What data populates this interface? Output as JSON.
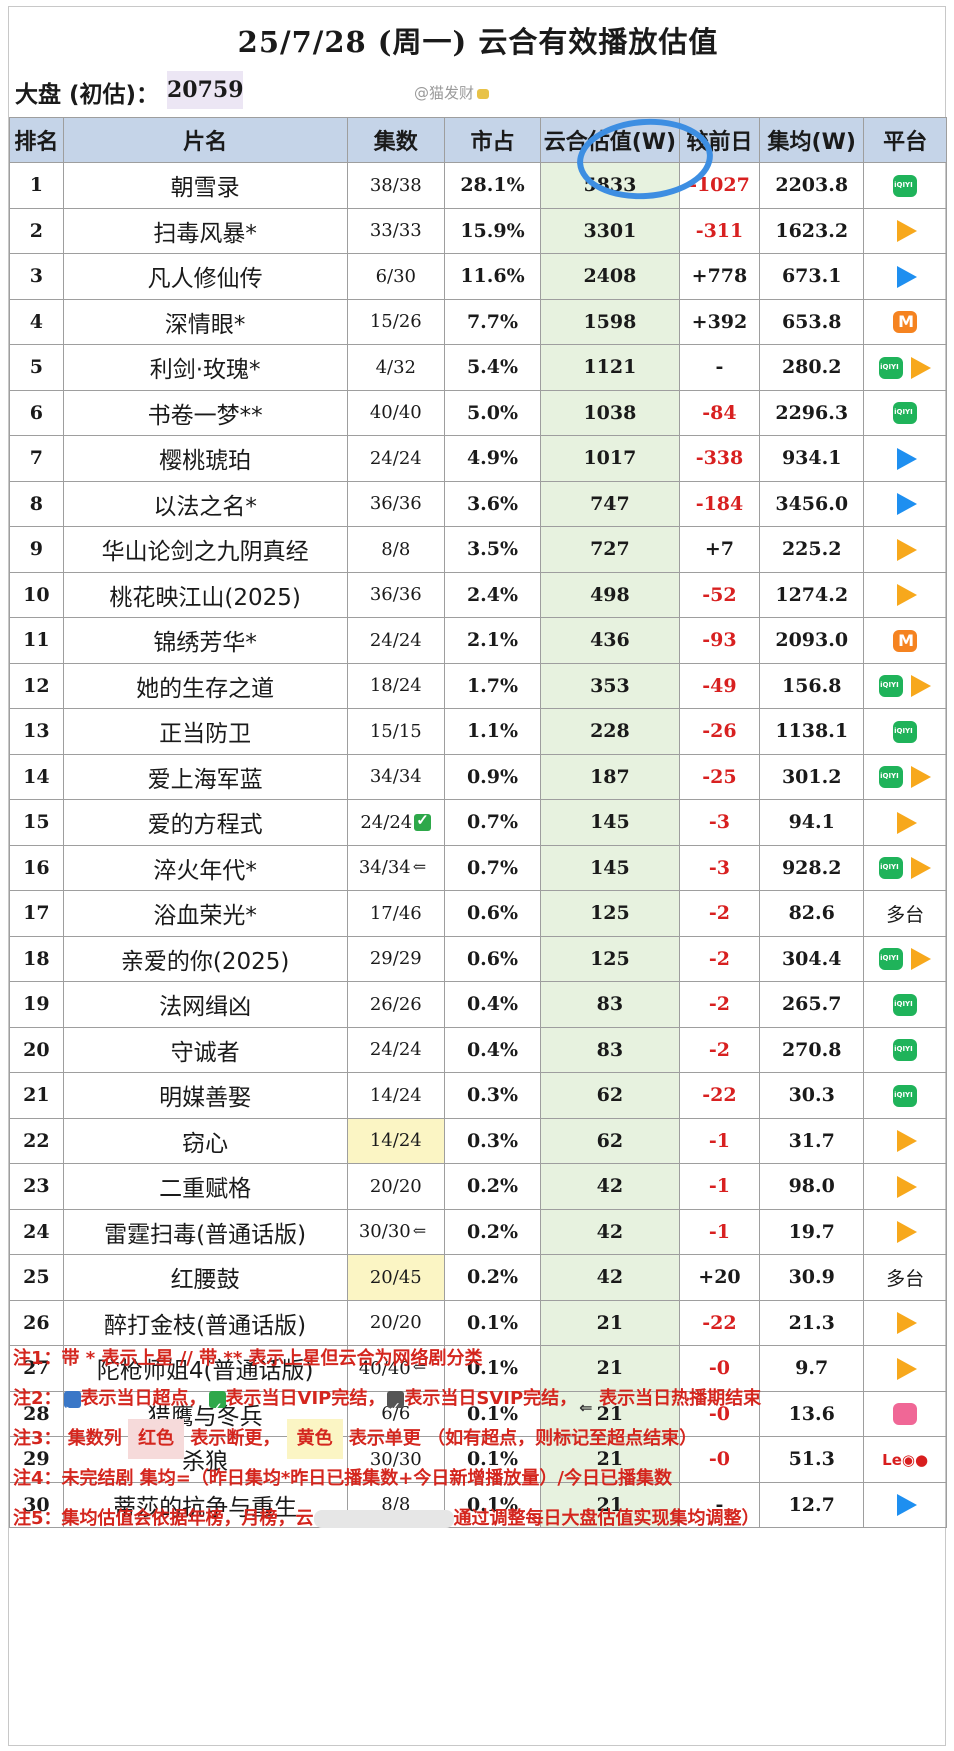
{
  "title": "25/7/28 (周一) 云合有效播放估值",
  "dapan": {
    "label": "大盘 (初估)：",
    "value": "20759"
  },
  "watermark": "@猫发财",
  "headers": [
    "排名",
    "片名",
    "集数",
    "市占",
    "云合估值(W)",
    "较前日",
    "集均(W)",
    "平台"
  ],
  "rows": [
    {
      "rank": "1",
      "name": "朝雪录",
      "eps": "38/38",
      "share": "28.1%",
      "yun": "5833",
      "prev": "-1027",
      "avg": "2203.8",
      "plat": [
        "iq"
      ]
    },
    {
      "rank": "2",
      "name": "扫毒风暴*",
      "eps": "33/33",
      "share": "15.9%",
      "yun": "3301",
      "prev": "-311",
      "avg": "1623.2",
      "plat": [
        "tx"
      ]
    },
    {
      "rank": "3",
      "name": "凡人修仙传",
      "eps": "6/30",
      "share": "11.6%",
      "yun": "2408",
      "prev": "+778",
      "avg": "673.1",
      "plat": [
        "yk"
      ]
    },
    {
      "rank": "4",
      "name": "深情眼*",
      "eps": "15/26",
      "share": "7.7%",
      "yun": "1598",
      "prev": "+392",
      "avg": "653.8",
      "plat": [
        "mg"
      ]
    },
    {
      "rank": "5",
      "name": "利剑·玫瑰*",
      "eps": "4/32",
      "share": "5.4%",
      "yun": "1121",
      "prev": "-",
      "avg": "280.2",
      "plat": [
        "iq",
        "tx"
      ]
    },
    {
      "rank": "6",
      "name": "书卷一梦**",
      "eps": "40/40",
      "share": "5.0%",
      "yun": "1038",
      "prev": "-84",
      "avg": "2296.3",
      "plat": [
        "iq"
      ]
    },
    {
      "rank": "7",
      "name": "樱桃琥珀",
      "eps": "24/24",
      "share": "4.9%",
      "yun": "1017",
      "prev": "-338",
      "avg": "934.1",
      "plat": [
        "yk"
      ]
    },
    {
      "rank": "8",
      "name": "以法之名*",
      "eps": "36/36",
      "share": "3.6%",
      "yun": "747",
      "prev": "-184",
      "avg": "3456.0",
      "plat": [
        "yk"
      ]
    },
    {
      "rank": "9",
      "name": "华山论剑之九阴真经",
      "eps": "8/8",
      "share": "3.5%",
      "yun": "727",
      "prev": "+7",
      "avg": "225.2",
      "plat": [
        "tx"
      ]
    },
    {
      "rank": "10",
      "name": "桃花映江山(2025)",
      "eps": "36/36",
      "share": "2.4%",
      "yun": "498",
      "prev": "-52",
      "avg": "1274.2",
      "plat": [
        "tx"
      ]
    },
    {
      "rank": "11",
      "name": "锦绣芳华*",
      "eps": "24/24",
      "share": "2.1%",
      "yun": "436",
      "prev": "-93",
      "avg": "2093.0",
      "plat": [
        "mg"
      ]
    },
    {
      "rank": "12",
      "name": "她的生存之道",
      "eps": "18/24",
      "share": "1.7%",
      "yun": "353",
      "prev": "-49",
      "avg": "156.8",
      "plat": [
        "iq",
        "tx"
      ]
    },
    {
      "rank": "13",
      "name": "正当防卫",
      "eps": "15/15",
      "share": "1.1%",
      "yun": "228",
      "prev": "-26",
      "avg": "1138.1",
      "plat": [
        "iq"
      ]
    },
    {
      "rank": "14",
      "name": "爱上海军蓝",
      "eps": "34/34",
      "share": "0.9%",
      "yun": "187",
      "prev": "-25",
      "avg": "301.2",
      "plat": [
        "iq",
        "tx"
      ]
    },
    {
      "rank": "15",
      "name": "爱的方程式",
      "eps": "24/24",
      "eps_tag": "vip",
      "share": "0.7%",
      "yun": "145",
      "prev": "-3",
      "avg": "94.1",
      "plat": [
        "tx"
      ]
    },
    {
      "rank": "16",
      "name": "淬火年代*",
      "eps": "34/34",
      "eps_tag": "end",
      "share": "0.7%",
      "yun": "145",
      "prev": "-3",
      "avg": "928.2",
      "plat": [
        "iq",
        "tx"
      ]
    },
    {
      "rank": "17",
      "name": "浴血荣光*",
      "eps": "17/46",
      "share": "0.6%",
      "yun": "125",
      "prev": "-2",
      "avg": "82.6",
      "plat_text": "多台"
    },
    {
      "rank": "18",
      "name": "亲爱的你(2025)",
      "eps": "29/29",
      "share": "0.6%",
      "yun": "125",
      "prev": "-2",
      "avg": "304.4",
      "plat": [
        "iq",
        "tx"
      ]
    },
    {
      "rank": "19",
      "name": "法网缉凶",
      "eps": "26/26",
      "share": "0.4%",
      "yun": "83",
      "prev": "-2",
      "avg": "265.7",
      "plat": [
        "iq"
      ]
    },
    {
      "rank": "20",
      "name": "守诚者",
      "eps": "24/24",
      "share": "0.4%",
      "yun": "83",
      "prev": "-2",
      "avg": "270.8",
      "plat": [
        "iq"
      ]
    },
    {
      "rank": "21",
      "name": "明媒善娶",
      "eps": "14/24",
      "share": "0.3%",
      "yun": "62",
      "prev": "-22",
      "avg": "30.3",
      "plat": [
        "iq"
      ]
    },
    {
      "rank": "22",
      "name": "窃心",
      "eps": "14/24",
      "eps_yellow": true,
      "share": "0.3%",
      "yun": "62",
      "prev": "-1",
      "avg": "31.7",
      "plat": [
        "tx"
      ]
    },
    {
      "rank": "23",
      "name": "二重赋格",
      "eps": "20/20",
      "share": "0.2%",
      "yun": "42",
      "prev": "-1",
      "avg": "98.0",
      "plat": [
        "tx"
      ]
    },
    {
      "rank": "24",
      "name": "雷霆扫毒(普通话版)",
      "eps": "30/30",
      "eps_tag": "end",
      "share": "0.2%",
      "yun": "42",
      "prev": "-1",
      "avg": "19.7",
      "plat": [
        "tx"
      ]
    },
    {
      "rank": "25",
      "name": "红腰鼓",
      "eps": "20/45",
      "eps_yellow": true,
      "share": "0.2%",
      "yun": "42",
      "prev": "+20",
      "avg": "30.9",
      "plat_text": "多台"
    },
    {
      "rank": "26",
      "name": "醉打金枝(普通话版)",
      "eps": "20/20",
      "share": "0.1%",
      "yun": "21",
      "prev": "-22",
      "avg": "21.3",
      "plat": [
        "tx"
      ]
    },
    {
      "rank": "27",
      "name": "陀枪师姐4(普通话版)",
      "eps": "40/40",
      "eps_tag": "end",
      "share": "0.1%",
      "yun": "21",
      "prev": "-0",
      "avg": "9.7",
      "plat": [
        "tx"
      ]
    },
    {
      "rank": "28",
      "name": "猎鹰与冬兵",
      "eps": "6/6",
      "share": "0.1%",
      "yun": "21",
      "prev": "-0",
      "avg": "13.6",
      "plat": [
        "bl"
      ]
    },
    {
      "rank": "29",
      "name": "杀狼",
      "eps": "30/30",
      "share": "0.1%",
      "yun": "21",
      "prev": "-0",
      "avg": "51.3",
      "plat": [
        "le"
      ]
    },
    {
      "rank": "30",
      "name": "蒂莎的抗争与重生",
      "eps": "8/8",
      "share": "0.1%",
      "yun": "21",
      "prev": "-",
      "avg": "12.7",
      "plat": [
        "yk"
      ]
    }
  ],
  "notes": {
    "n1": "注1：带 * 表示上星 // 带 ** 表示上星但云合为网络剧分类",
    "n2_prefix": "注2：",
    "n2_a": "表示当日超点，",
    "n2_b": "表示当日VIP完结，",
    "n2_c": "表示当日SVIP完结，",
    "n2_d": "表示当日热播期结束",
    "n3_prefix": "注3：  集数列 ",
    "n3_red": "红色",
    "n3_mid": " 表示断更， ",
    "n3_yel": "黄色",
    "n3_end": " 表示单更 （如有超点，则标记至超点结束）",
    "n4": "注4：未完结剧 集均=（昨日集均*昨日已播集数+今日新增播放量）/今日已播集数",
    "n5_a": "注5：集均估值会依据年榜，月榜，云",
    "n5_b": "通过调整每日大盘估值实现集均调整）"
  },
  "platform_icons": {
    "iq": "iqiyi-icon",
    "tx": "tencent-video-icon",
    "yk": "youku-icon",
    "mg": "mango-tv-icon",
    "bl": "bilibili-icon",
    "le": "letv-icon"
  },
  "plat_labels": {
    "le": "Le◉●"
  },
  "colors": {
    "header_bg": "#c5d4e8",
    "yun_bg": "#e7f2df",
    "negative": "#d82020",
    "yellow_cell": "#fbf5c4",
    "note_red": "#d4261e",
    "circle": "#3d8ee2"
  }
}
